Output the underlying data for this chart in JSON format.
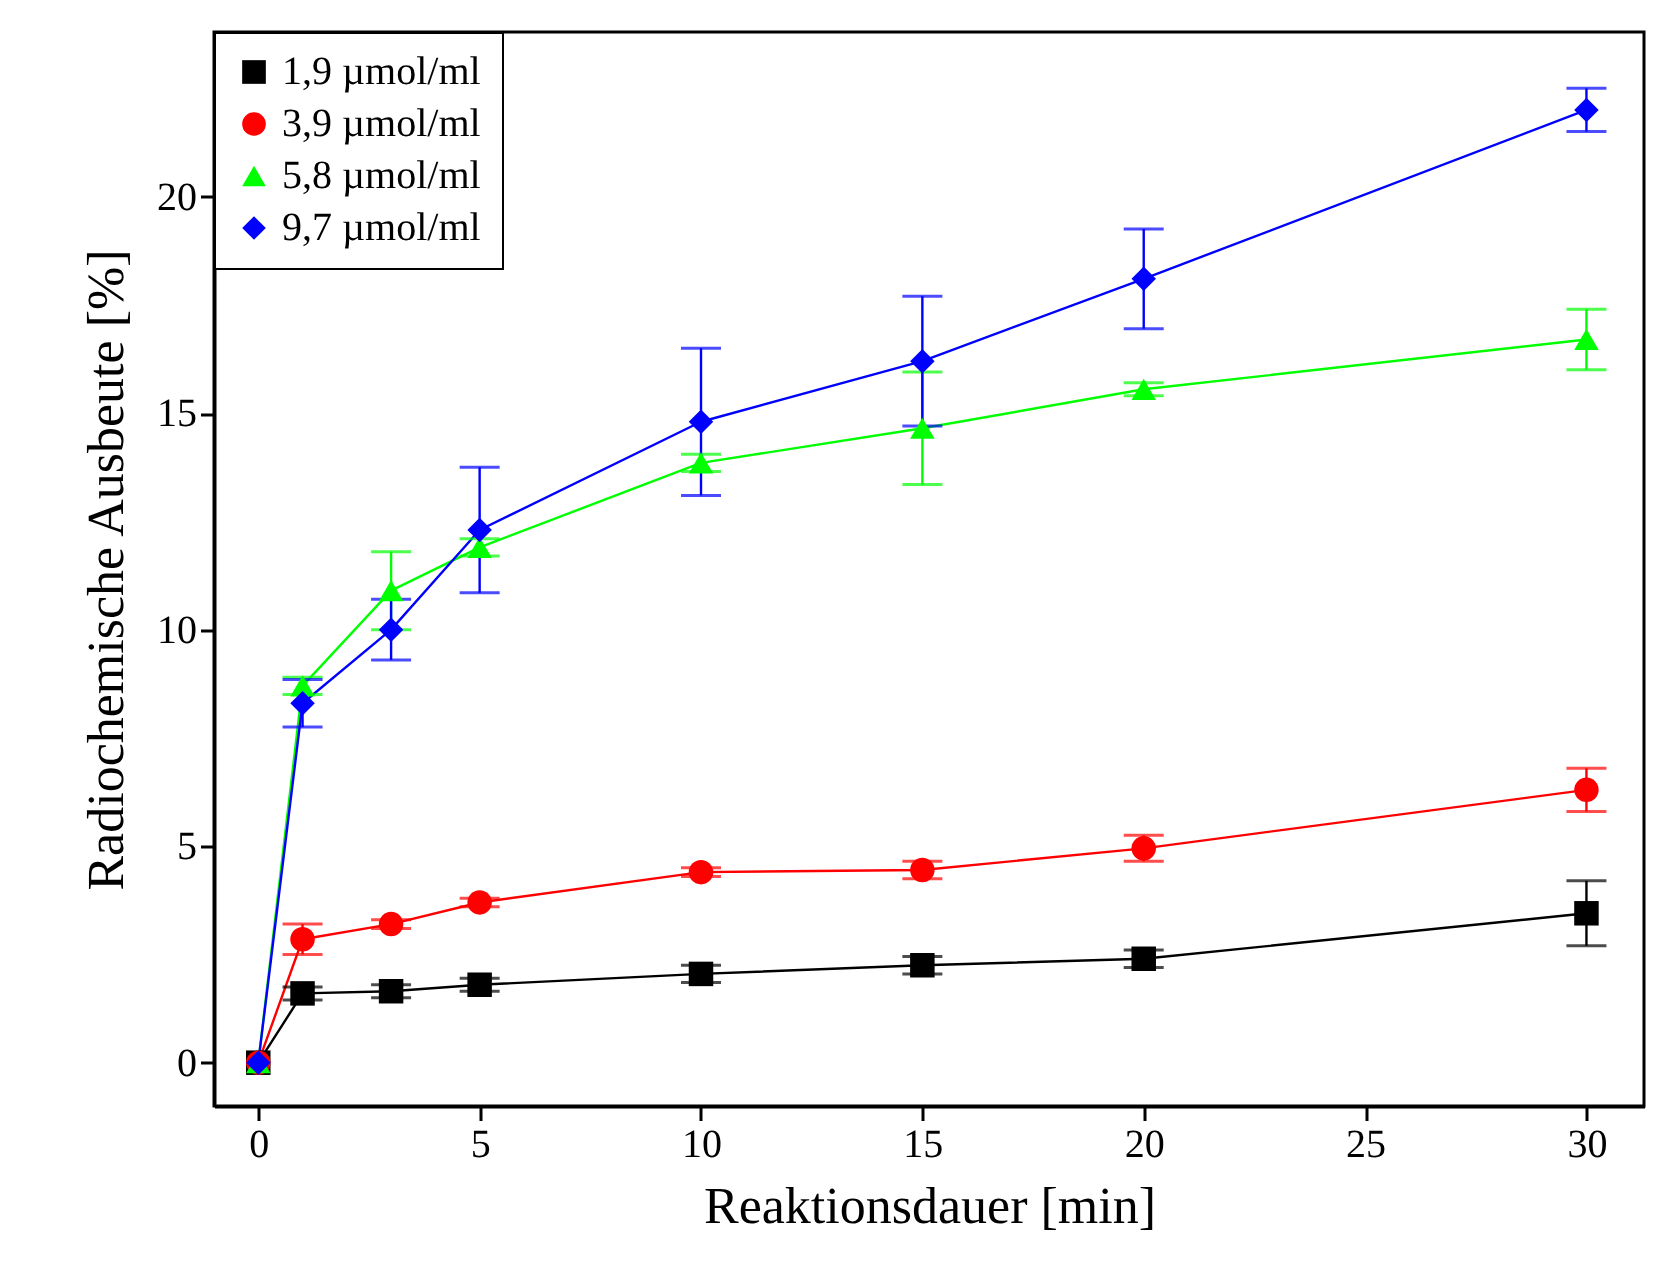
{
  "chart_data": {
    "type": "line",
    "xlabel": "Reaktionsdauer [min]",
    "ylabel": "Radiochemische Ausbeute [%]",
    "x": [
      0,
      1,
      3,
      5,
      10,
      15,
      20,
      30
    ],
    "series": [
      {
        "name": "1,9 µmol/ml",
        "color": "#000000",
        "marker": "square",
        "values": [
          0,
          1.6,
          1.65,
          1.8,
          2.05,
          2.25,
          2.4,
          3.45
        ],
        "errors": [
          null,
          0.15,
          0.15,
          0.15,
          0.2,
          0.2,
          0.2,
          0.75
        ]
      },
      {
        "name": "3,9 µmol/ml",
        "color": "#ff0000",
        "marker": "circle",
        "values": [
          0,
          2.85,
          3.2,
          3.7,
          4.4,
          4.45,
          4.95,
          6.3
        ],
        "errors": [
          null,
          0.35,
          0.1,
          0.1,
          0.1,
          0.2,
          0.3,
          0.5
        ]
      },
      {
        "name": "5,8 µmol/ml",
        "color": "#00ff00",
        "marker": "triangle",
        "values": [
          0,
          8.7,
          10.9,
          11.9,
          13.85,
          14.65,
          15.55,
          16.7
        ],
        "errors": [
          null,
          0.2,
          0.9,
          0.2,
          0.2,
          1.3,
          0.15,
          0.7
        ]
      },
      {
        "name": "9,7 µmol/ml",
        "color": "#0000ff",
        "marker": "diamond",
        "values": [
          0,
          8.3,
          10.0,
          12.3,
          14.8,
          16.2,
          18.1,
          22.0
        ],
        "errors": [
          null,
          0.55,
          0.7,
          1.45,
          1.7,
          1.5,
          1.15,
          0.5
        ]
      }
    ],
    "xlim": [
      -1,
      31.3
    ],
    "ylim": [
      -1,
      23.8
    ],
    "xticks": [
      0,
      5,
      10,
      15,
      20,
      25,
      30
    ],
    "yticks": [
      0,
      5,
      10,
      15,
      20
    ],
    "legend": "top left",
    "line_style": "solid",
    "grid": false
  }
}
